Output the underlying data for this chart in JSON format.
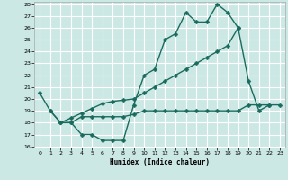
{
  "xlabel": "Humidex (Indice chaleur)",
  "bg_color": "#cce8e5",
  "line_color": "#1a6b5e",
  "grid_color": "#ffffff",
  "ylim": [
    16,
    28
  ],
  "xlim": [
    -0.5,
    23.5
  ],
  "yticks": [
    16,
    17,
    18,
    19,
    20,
    21,
    22,
    23,
    24,
    25,
    26,
    27,
    28
  ],
  "xticks": [
    0,
    1,
    2,
    3,
    4,
    5,
    6,
    7,
    8,
    9,
    10,
    11,
    12,
    13,
    14,
    15,
    16,
    17,
    18,
    19,
    20,
    21,
    22,
    23
  ],
  "line1_x": [
    0,
    1,
    2,
    3,
    4,
    5,
    6,
    7,
    8,
    9,
    10,
    11,
    12,
    13,
    14,
    15,
    16,
    17,
    18,
    19,
    20,
    21,
    22
  ],
  "line1_y": [
    20.5,
    19,
    18,
    18,
    17,
    17,
    16.5,
    16.5,
    16.5,
    19.5,
    22,
    22.5,
    25,
    25.5,
    27.3,
    26.5,
    26.5,
    28,
    27.3,
    26,
    21.5,
    19,
    19.5
  ],
  "line2_x": [
    2,
    3,
    4,
    5,
    6,
    7,
    8,
    9,
    10,
    11,
    12,
    13,
    14,
    15,
    16,
    17,
    18,
    19
  ],
  "line2_y": [
    18,
    18.4,
    18.8,
    19.2,
    19.6,
    19.8,
    19.9,
    20.0,
    20.5,
    21.0,
    21.5,
    22.0,
    22.5,
    23.0,
    23.5,
    24.0,
    24.5,
    26.0
  ],
  "line3_x": [
    1,
    2,
    3,
    4,
    5,
    6,
    7,
    8,
    9,
    10,
    11,
    12,
    13,
    14,
    15,
    16,
    17,
    18,
    19,
    20,
    21,
    22,
    23
  ],
  "line3_y": [
    19,
    18,
    18,
    18.5,
    18.5,
    18.5,
    18.5,
    18.5,
    18.7,
    19,
    19,
    19,
    19,
    19,
    19,
    19,
    19,
    19,
    19,
    19.5,
    19.5,
    19.5,
    19.5
  ],
  "marker_size": 2.5,
  "line_width": 1.0
}
